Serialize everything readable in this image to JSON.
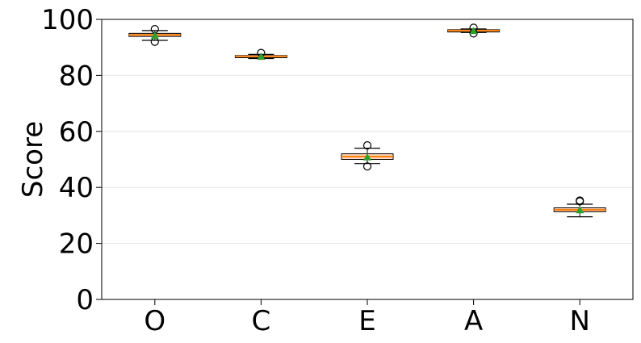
{
  "chart_data": {
    "type": "box",
    "categories": [
      "O",
      "C",
      "E",
      "A",
      "N"
    ],
    "ylabel": "Score",
    "xlabel": "",
    "ylim": [
      0,
      100
    ],
    "yticks": [
      0,
      20,
      40,
      60,
      80,
      100
    ],
    "grid": "horizontal",
    "boxes": [
      {
        "label": "O",
        "whisker_low": 92.5,
        "q1": 93.9,
        "median": 94.5,
        "q3": 95.0,
        "whisker_high": 96.0,
        "mean": 94.2,
        "outliers": [
          96.5,
          92.0
        ]
      },
      {
        "label": "C",
        "whisker_low": 86.0,
        "q1": 86.3,
        "median": 86.8,
        "q3": 87.1,
        "whisker_high": 87.5,
        "mean": 86.7,
        "outliers": [
          88.0
        ]
      },
      {
        "label": "E",
        "whisker_low": 48.5,
        "q1": 50.0,
        "median": 51.0,
        "q3": 52.0,
        "whisker_high": 54.0,
        "mean": 50.8,
        "outliers": [
          55.0,
          47.5
        ]
      },
      {
        "label": "A",
        "whisker_low": 95.3,
        "q1": 95.5,
        "median": 96.0,
        "q3": 96.3,
        "whisker_high": 96.6,
        "mean": 95.9,
        "outliers": [
          97.0,
          95.0
        ]
      },
      {
        "label": "N",
        "whisker_low": 29.5,
        "q1": 31.3,
        "median": 32.0,
        "q3": 32.7,
        "whisker_high": 34.0,
        "mean": 31.9,
        "outliers": [
          35.0,
          35.3
        ]
      }
    ],
    "colors": {
      "box_face": "#ffd7b5",
      "box_edge": "#000000",
      "median": "#ff7f0e",
      "mean_marker": "#2ca02c",
      "grid": "#e6e6e6"
    }
  }
}
